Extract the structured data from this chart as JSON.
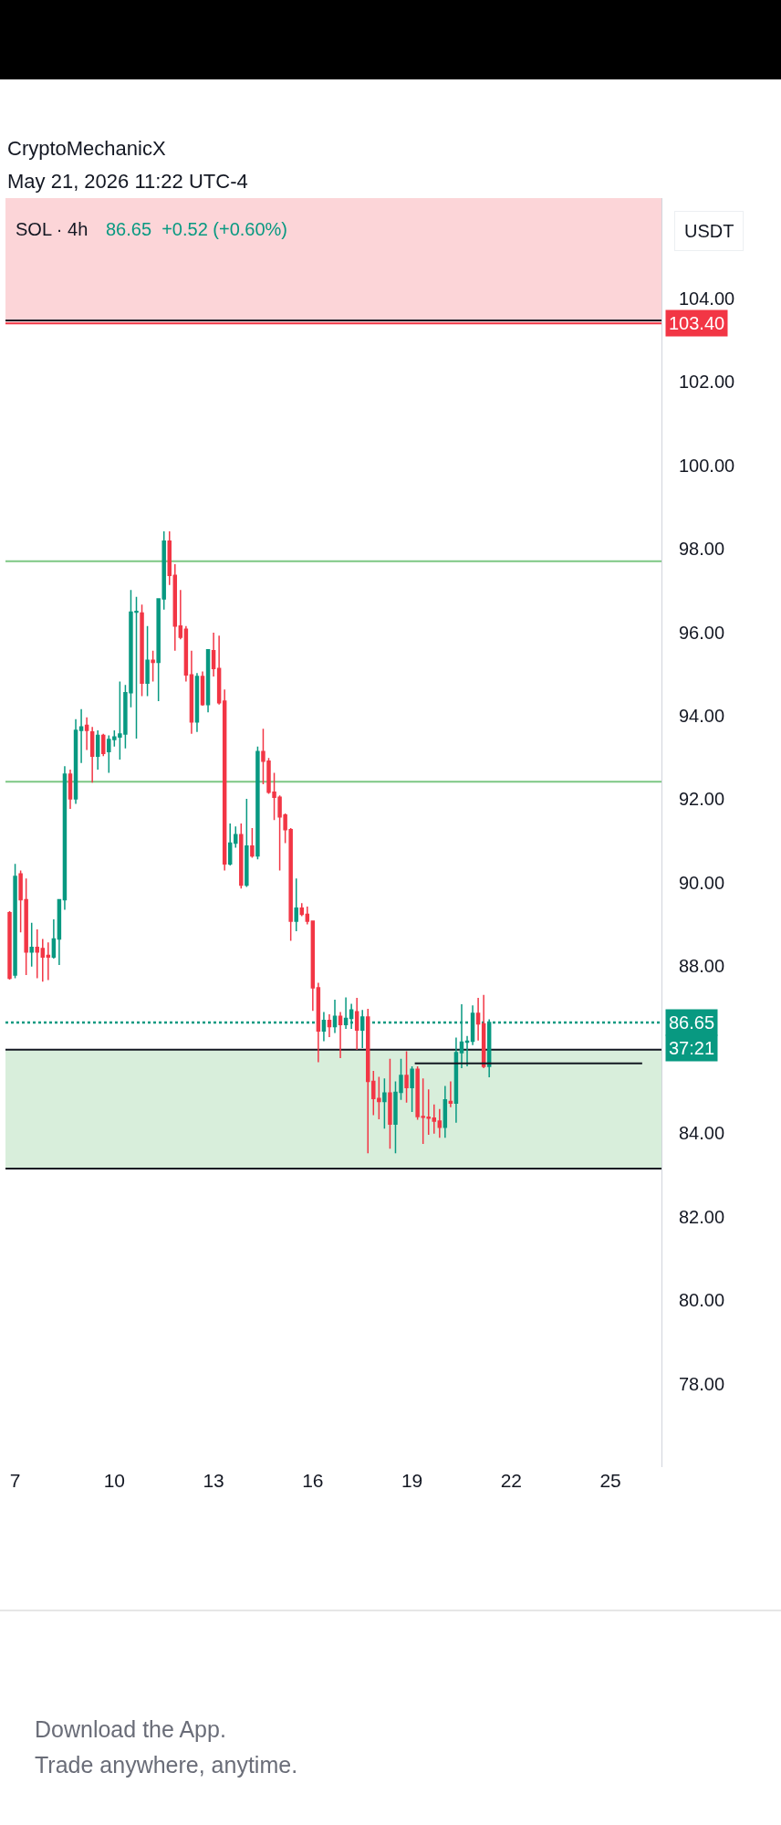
{
  "chart_data": {
    "type": "candlestick",
    "title": "CryptoMechanicX",
    "subtitle": "May 21, 2026 11:22 UTC-4",
    "ylabel": "USDT",
    "annotations": [
      "SOL · 4h",
      "86.65  +0.52 (+0.60%)",
      "37:21",
      "Download the App.",
      "Trade anywhere, anytime."
    ],
    "x": [
      "2026-05-06T20:00",
      "2026-05-07T00:00",
      "2026-05-07T04:00",
      "2026-05-07T08:00",
      "2026-05-07T12:00",
      "2026-05-07T16:00",
      "2026-05-07T20:00",
      "2026-05-08T00:00",
      "2026-05-08T04:00",
      "2026-05-08T08:00",
      "2026-05-08T12:00",
      "2026-05-08T16:00",
      "2026-05-08T20:00",
      "2026-05-09T00:00",
      "2026-05-09T04:00",
      "2026-05-09T08:00",
      "2026-05-09T12:00",
      "2026-05-09T16:00",
      "2026-05-09T20:00",
      "2026-05-10T00:00",
      "2026-05-10T04:00",
      "2026-05-10T08:00",
      "2026-05-10T12:00",
      "2026-05-10T16:00",
      "2026-05-10T20:00",
      "2026-05-11T00:00",
      "2026-05-11T04:00",
      "2026-05-11T08:00",
      "2026-05-11T12:00",
      "2026-05-11T16:00",
      "2026-05-11T20:00",
      "2026-05-12T00:00",
      "2026-05-12T04:00",
      "2026-05-12T08:00",
      "2026-05-12T12:00",
      "2026-05-12T16:00",
      "2026-05-12T20:00",
      "2026-05-13T00:00",
      "2026-05-13T04:00",
      "2026-05-13T08:00",
      "2026-05-13T12:00",
      "2026-05-13T16:00",
      "2026-05-13T20:00",
      "2026-05-14T00:00",
      "2026-05-14T04:00",
      "2026-05-14T08:00",
      "2026-05-14T12:00",
      "2026-05-14T16:00",
      "2026-05-14T20:00",
      "2026-05-15T00:00",
      "2026-05-15T04:00",
      "2026-05-15T08:00",
      "2026-05-15T12:00",
      "2026-05-15T16:00",
      "2026-05-15T20:00",
      "2026-05-16T00:00",
      "2026-05-16T04:00",
      "2026-05-16T08:00",
      "2026-05-16T12:00",
      "2026-05-16T16:00",
      "2026-05-16T20:00",
      "2026-05-17T00:00",
      "2026-05-17T04:00",
      "2026-05-17T08:00",
      "2026-05-17T12:00",
      "2026-05-17T16:00",
      "2026-05-17T20:00",
      "2026-05-18T00:00",
      "2026-05-18T04:00",
      "2026-05-18T08:00",
      "2026-05-18T12:00",
      "2026-05-18T16:00",
      "2026-05-18T20:00",
      "2026-05-19T00:00",
      "2026-05-19T04:00",
      "2026-05-19T08:00",
      "2026-05-19T12:00",
      "2026-05-19T16:00",
      "2026-05-19T20:00",
      "2026-05-20T00:00",
      "2026-05-20T04:00",
      "2026-05-20T08:00",
      "2026-05-20T12:00",
      "2026-05-20T16:00",
      "2026-05-20T20:00",
      "2026-05-21T00:00",
      "2026-05-21T04:00",
      "2026-05-21T08:00"
    ],
    "ohlc": [
      [
        89.28,
        89.32,
        87.68,
        87.71
      ],
      [
        87.79,
        90.45,
        87.71,
        90.15
      ],
      [
        90.21,
        90.29,
        88.81,
        89.59
      ],
      [
        89.59,
        90.1,
        87.79,
        88.34
      ],
      [
        88.34,
        89.04,
        87.99,
        88.45
      ],
      [
        88.45,
        88.88,
        87.71,
        88.34
      ],
      [
        88.42,
        88.65,
        87.63,
        88.22
      ],
      [
        88.26,
        88.57,
        87.67,
        88.22
      ],
      [
        88.22,
        89.12,
        88.18,
        88.65
      ],
      [
        88.65,
        89.59,
        88.03,
        89.59
      ],
      [
        89.59,
        92.79,
        89.35,
        92.6
      ],
      [
        92.6,
        92.71,
        91.77,
        92.01
      ],
      [
        92.01,
        93.92,
        91.89,
        93.65
      ],
      [
        93.65,
        94.16,
        92.87,
        93.73
      ],
      [
        93.77,
        93.96,
        93.18,
        93.65
      ],
      [
        93.61,
        93.73,
        92.4,
        93.03
      ],
      [
        93.03,
        93.65,
        92.71,
        93.53
      ],
      [
        93.53,
        93.57,
        93.03,
        93.1
      ],
      [
        93.14,
        93.53,
        92.63,
        93.43
      ],
      [
        93.43,
        93.65,
        93.26,
        93.49
      ],
      [
        93.49,
        94.82,
        92.95,
        93.56
      ],
      [
        93.56,
        94.74,
        93.22,
        94.55
      ],
      [
        94.55,
        97.01,
        94.2,
        96.48
      ],
      [
        96.48,
        96.85,
        93.45,
        96.5
      ],
      [
        96.46,
        96.66,
        94.47,
        94.78
      ],
      [
        94.78,
        96.15,
        94.47,
        95.33
      ],
      [
        95.33,
        95.56,
        94.82,
        95.28
      ],
      [
        95.28,
        96.8,
        94.35,
        96.8
      ],
      [
        96.8,
        98.42,
        96.54,
        98.18
      ],
      [
        98.18,
        98.42,
        97.13,
        97.36
      ],
      [
        97.36,
        97.63,
        95.56,
        96.15
      ],
      [
        96.15,
        97.01,
        95.83,
        95.88
      ],
      [
        96.07,
        96.15,
        94.82,
        94.98
      ],
      [
        94.98,
        95.56,
        93.57,
        93.85
      ],
      [
        93.85,
        95.02,
        93.61,
        94.94
      ],
      [
        94.94,
        95.06,
        94.24,
        94.27
      ],
      [
        94.27,
        95.58,
        94.08,
        95.58
      ],
      [
        95.56,
        95.99,
        94.94,
        95.13
      ],
      [
        95.13,
        95.92,
        94.27,
        94.31
      ],
      [
        94.35,
        94.63,
        90.29,
        90.45
      ],
      [
        90.45,
        91.42,
        90.41,
        90.95
      ],
      [
        90.95,
        91.35,
        90.84,
        91.15
      ],
      [
        91.15,
        91.42,
        89.86,
        89.94
      ],
      [
        89.94,
        92.01,
        89.9,
        90.88
      ],
      [
        90.88,
        91.31,
        90.6,
        90.64
      ],
      [
        90.64,
        93.26,
        90.56,
        93.14
      ],
      [
        93.14,
        93.69,
        92.36,
        92.91
      ],
      [
        92.91,
        92.99,
        92.13,
        92.17
      ],
      [
        92.17,
        92.63,
        91.5,
        92.05
      ],
      [
        92.05,
        92.09,
        90.29,
        91.58
      ],
      [
        91.62,
        91.66,
        90.95,
        91.27
      ],
      [
        91.27,
        91.31,
        88.61,
        89.08
      ],
      [
        89.08,
        90.1,
        88.84,
        89.39
      ],
      [
        89.39,
        89.51,
        89.2,
        89.24
      ],
      [
        89.24,
        89.43,
        89.0,
        89.08
      ],
      [
        89.08,
        89.08,
        86.93,
        87.48
      ],
      [
        87.48,
        87.6,
        85.7,
        86.45
      ],
      [
        86.45,
        86.9,
        86.2,
        86.7
      ],
      [
        86.7,
        86.85,
        86.3,
        86.55
      ],
      [
        86.55,
        87.2,
        86.4,
        86.8
      ],
      [
        86.8,
        86.9,
        85.8,
        86.6
      ],
      [
        86.6,
        87.25,
        86.5,
        86.75
      ],
      [
        86.75,
        87.1,
        86.5,
        86.95
      ],
      [
        86.91,
        87.24,
        86.0,
        86.47
      ],
      [
        86.47,
        86.95,
        86.04,
        86.78
      ],
      [
        86.78,
        86.98,
        83.52,
        85.24
      ],
      [
        85.24,
        85.49,
        84.43,
        84.83
      ],
      [
        84.83,
        85.35,
        84.33,
        84.76
      ],
      [
        84.76,
        85.31,
        84.11,
        84.96
      ],
      [
        84.96,
        85.78,
        83.63,
        84.22
      ],
      [
        84.22,
        85.24,
        83.52,
        84.98
      ],
      [
        84.98,
        85.78,
        84.8,
        85.38
      ],
      [
        85.38,
        85.96,
        84.73,
        85.09
      ],
      [
        85.09,
        85.6,
        84.51,
        85.53
      ],
      [
        85.53,
        85.6,
        84.32,
        84.4
      ],
      [
        84.4,
        85.31,
        83.74,
        84.38
      ],
      [
        84.38,
        85.05,
        83.96,
        84.36
      ],
      [
        84.36,
        84.69,
        83.99,
        84.29
      ],
      [
        84.29,
        84.58,
        83.89,
        84.14
      ],
      [
        84.14,
        85.13,
        83.89,
        84.8
      ],
      [
        84.76,
        85.24,
        84.62,
        84.72
      ],
      [
        84.72,
        86.29,
        84.25,
        85.93
      ],
      [
        85.93,
        87.09,
        85.56,
        86.18
      ],
      [
        86.18,
        86.33,
        85.6,
        86.2
      ],
      [
        86.2,
        87.06,
        86.11,
        86.87
      ],
      [
        86.87,
        87.24,
        86.22,
        86.62
      ],
      [
        86.62,
        87.31,
        85.56,
        85.6
      ],
      [
        85.6,
        86.73,
        85.34,
        86.65
      ]
    ],
    "series": [
      {
        "type": "line",
        "color": "#131722",
        "x": [
          "2026-05-19T02:00",
          "2026-05-25T23:00"
        ],
        "values": [
          85.67,
          85.67
        ]
      }
    ],
    "xlim": [
      "2026-05-06T17:00",
      "2026-05-26T13:00"
    ],
    "xticks": [
      {
        "value": "2026-05-07",
        "label": "7"
      },
      {
        "value": "2026-05-10",
        "label": "10"
      },
      {
        "value": "2026-05-13",
        "label": "13"
      },
      {
        "value": "2026-05-16",
        "label": "16"
      },
      {
        "value": "2026-05-19",
        "label": "19"
      },
      {
        "value": "2026-05-22",
        "label": "22"
      },
      {
        "value": "2026-05-25",
        "label": "25"
      }
    ],
    "ylim": [
      76,
      106.4
    ],
    "yticks": [
      {
        "value": 78,
        "label": "78.00"
      },
      {
        "value": 80,
        "label": "80.00"
      },
      {
        "value": 82,
        "label": "82.00"
      },
      {
        "value": 84,
        "label": "84.00"
      },
      {
        "value": 86,
        "label": null
      },
      {
        "value": 88,
        "label": "88.00"
      },
      {
        "value": 90,
        "label": "90.00"
      },
      {
        "value": 92,
        "label": "92.00"
      },
      {
        "value": 94,
        "label": "94.00"
      },
      {
        "value": 96,
        "label": "96.00"
      },
      {
        "value": 98,
        "label": "98.00"
      },
      {
        "value": 100,
        "label": "100.00"
      },
      {
        "value": 102,
        "label": "102.00"
      },
      {
        "value": 104,
        "label": "104.00"
      }
    ],
    "bands": [
      {
        "axis": "y",
        "from": 103.4,
        "to": 106.4,
        "color": "#fcd5d8"
      },
      {
        "axis": "y",
        "from": 83.15,
        "to": 86.0,
        "color": "#d8eedb"
      }
    ],
    "ref_lines": [
      {
        "axis": "y",
        "value": 103.47,
        "color": "#131722"
      },
      {
        "axis": "y",
        "value": 103.4,
        "label": "103.40",
        "color": "#f23645"
      },
      {
        "axis": "y",
        "value": 97.7,
        "color": "#7cc783"
      },
      {
        "axis": "y",
        "value": 92.42,
        "color": "#7cc783"
      },
      {
        "axis": "y",
        "value": 86.0,
        "color": "#131722"
      },
      {
        "axis": "y",
        "value": 83.15,
        "color": "#131722"
      },
      {
        "axis": "y",
        "value": 86.65,
        "label": "86.65",
        "color": "#089981",
        "line_style": "dotted"
      }
    ]
  }
}
